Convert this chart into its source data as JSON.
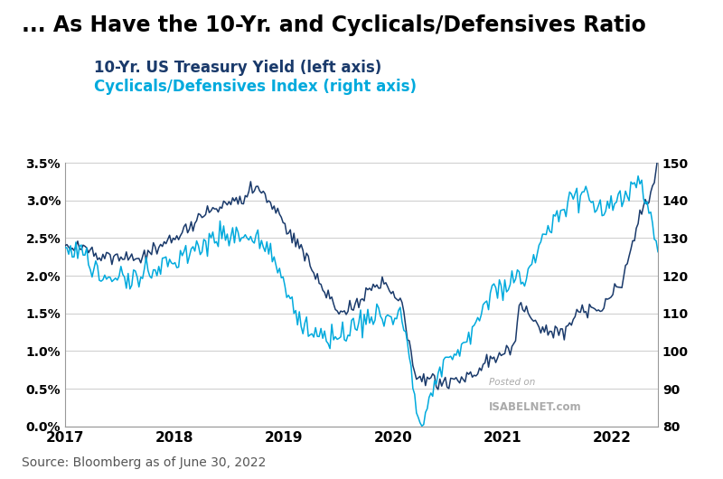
{
  "title": "... As Have the 10-Yr. and Cyclicals/Defensives Ratio",
  "legend_line1": "10-Yr. US Treasury Yield (left axis)",
  "legend_line2": "Cyclicals/Defensives Index (right axis)",
  "source": "Source: Bloomberg as of June 30, 2022",
  "watermark_line1": "Posted on",
  "watermark_line2": "ISABELNET.com",
  "color_yield": "#1a3a6b",
  "color_cyclicals": "#00aadd",
  "background_color": "#ffffff",
  "grid_color": "#cccccc",
  "title_fontsize": 17,
  "legend_fontsize": 12,
  "source_fontsize": 10,
  "yield_keypoints": [
    [
      0,
      2.4
    ],
    [
      2,
      2.38
    ],
    [
      4,
      2.3
    ],
    [
      6,
      2.28
    ],
    [
      8,
      2.22
    ],
    [
      10,
      2.35
    ],
    [
      12,
      2.5
    ],
    [
      14,
      2.7
    ],
    [
      16,
      2.88
    ],
    [
      18,
      2.95
    ],
    [
      20,
      3.1
    ],
    [
      21,
      3.18
    ],
    [
      22,
      3.05
    ],
    [
      23,
      2.9
    ],
    [
      24,
      2.72
    ],
    [
      26,
      2.35
    ],
    [
      27,
      2.1
    ],
    [
      28,
      1.9
    ],
    [
      30,
      1.52
    ],
    [
      32,
      1.62
    ],
    [
      33,
      1.8
    ],
    [
      34,
      1.88
    ],
    [
      35,
      1.92
    ],
    [
      36,
      1.75
    ],
    [
      37,
      1.6
    ],
    [
      38,
      0.9
    ],
    [
      38.5,
      0.58
    ],
    [
      39,
      0.62
    ],
    [
      40,
      0.6
    ],
    [
      41,
      0.58
    ],
    [
      43,
      0.65
    ],
    [
      45,
      0.72
    ],
    [
      47,
      0.92
    ],
    [
      48,
      0.95
    ],
    [
      49,
      1.1
    ],
    [
      50,
      1.65
    ],
    [
      51,
      1.45
    ],
    [
      52,
      1.3
    ],
    [
      53,
      1.28
    ],
    [
      54,
      1.22
    ],
    [
      55,
      1.32
    ],
    [
      56,
      1.48
    ],
    [
      57,
      1.55
    ],
    [
      58,
      1.52
    ],
    [
      59,
      1.55
    ],
    [
      60,
      1.78
    ],
    [
      61,
      1.88
    ],
    [
      62,
      2.35
    ],
    [
      63,
      2.82
    ],
    [
      64,
      3.0
    ],
    [
      65,
      3.48
    ]
  ],
  "cyclicals_keypoints": [
    [
      0,
      128
    ],
    [
      1,
      127
    ],
    [
      2,
      125
    ],
    [
      3,
      122
    ],
    [
      4,
      120
    ],
    [
      5,
      119
    ],
    [
      6,
      119
    ],
    [
      7,
      120
    ],
    [
      8,
      120
    ],
    [
      9,
      121
    ],
    [
      10,
      122
    ],
    [
      11,
      123
    ],
    [
      12,
      124
    ],
    [
      13,
      126
    ],
    [
      14,
      127
    ],
    [
      15,
      128
    ],
    [
      16,
      129
    ],
    [
      17,
      130
    ],
    [
      18,
      131
    ],
    [
      19,
      131
    ],
    [
      20,
      131
    ],
    [
      21,
      131
    ],
    [
      22,
      128
    ],
    [
      23,
      124
    ],
    [
      24,
      118
    ],
    [
      25,
      112
    ],
    [
      26,
      108
    ],
    [
      27,
      106
    ],
    [
      28,
      105
    ],
    [
      29,
      104
    ],
    [
      30,
      103
    ],
    [
      31,
      106
    ],
    [
      32,
      108
    ],
    [
      33,
      109
    ],
    [
      34,
      110
    ],
    [
      35,
      110
    ],
    [
      36,
      109
    ],
    [
      37,
      108
    ],
    [
      37.5,
      104
    ],
    [
      38,
      95
    ],
    [
      38.3,
      88
    ],
    [
      38.5,
      84
    ],
    [
      38.7,
      82
    ],
    [
      39,
      81
    ],
    [
      39.3,
      82
    ],
    [
      39.5,
      84
    ],
    [
      40,
      88
    ],
    [
      40.5,
      92
    ],
    [
      41,
      96
    ],
    [
      42,
      99
    ],
    [
      43,
      100
    ],
    [
      44,
      103
    ],
    [
      45,
      107
    ],
    [
      46,
      112
    ],
    [
      47,
      116
    ],
    [
      48,
      118
    ],
    [
      49,
      119
    ],
    [
      50,
      118
    ],
    [
      51,
      122
    ],
    [
      52,
      127
    ],
    [
      53,
      133
    ],
    [
      54,
      137
    ],
    [
      55,
      140
    ],
    [
      56,
      142
    ],
    [
      57,
      141
    ],
    [
      58,
      138
    ],
    [
      59,
      136
    ],
    [
      60,
      139
    ],
    [
      61,
      141
    ],
    [
      62,
      143
    ],
    [
      63,
      145
    ],
    [
      64,
      138
    ],
    [
      65,
      127
    ]
  ]
}
